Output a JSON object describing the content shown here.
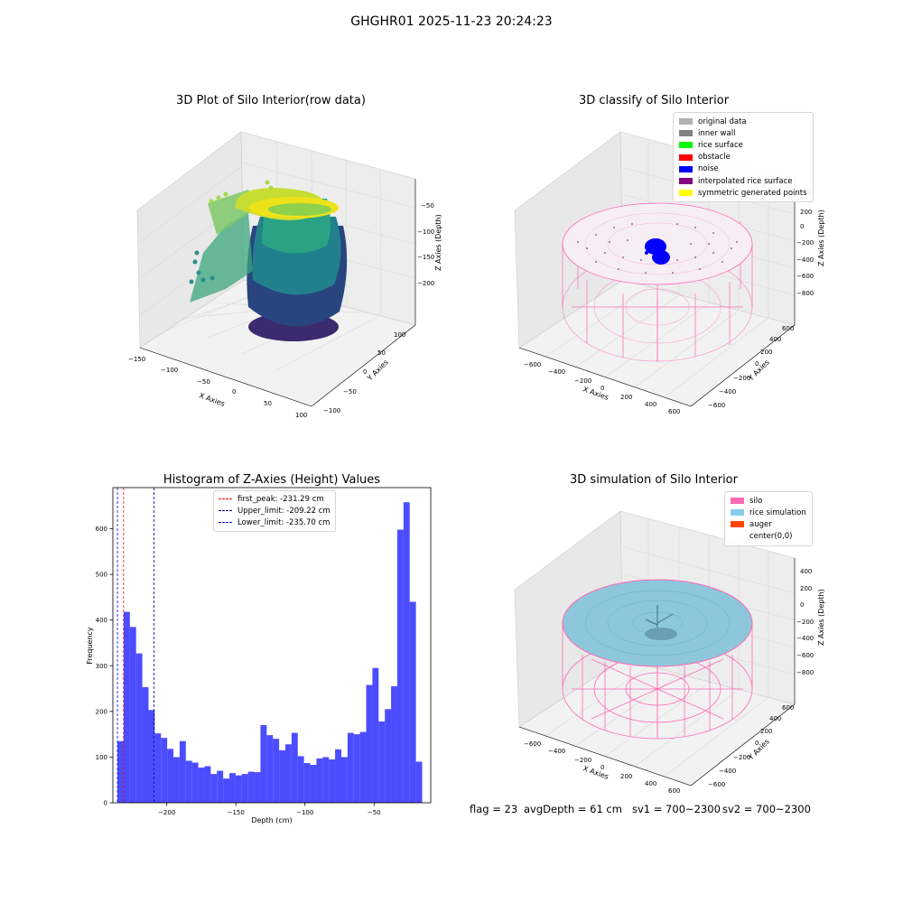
{
  "suptitle": "GHGHR01 2025-11-23 20:24:23",
  "panels": {
    "raw": {
      "title": "3D Plot of Silo Interior(row data)",
      "xlabel": "X Axies",
      "ylabel": "Y Axies",
      "zlabel": "Z Axies (Depth)",
      "xticks": [
        "−150",
        "−100",
        "−50",
        "0",
        "50",
        "100"
      ],
      "yticks": [
        "−100",
        "−50",
        "0",
        "50",
        "100"
      ],
      "zticks": [
        "−50",
        "−100",
        "−150",
        "−200"
      ]
    },
    "classify": {
      "title": "3D classify of Silo Interior",
      "xlabel": "X Axies",
      "ylabel": "Y Axies",
      "zlabel": "Z Axies (Depth)",
      "xticks": [
        "−600",
        "−400",
        "−200",
        "0",
        "200",
        "400",
        "600"
      ],
      "yticks": [
        "−600",
        "−400",
        "−200",
        "0",
        "200",
        "400",
        "600"
      ],
      "zticks": [
        "400",
        "200",
        "0",
        "−200",
        "−400",
        "−600",
        "−800"
      ],
      "legend": [
        {
          "label": "original data",
          "color": "#b0b0b0"
        },
        {
          "label": "inner wall",
          "color": "#808080"
        },
        {
          "label": "rice surface",
          "color": "#00ff00"
        },
        {
          "label": "obstacle",
          "color": "#ff0000"
        },
        {
          "label": "noise",
          "color": "#0000ff"
        },
        {
          "label": "interpolated rice surface",
          "color": "#800080"
        },
        {
          "label": "symmetric generated points",
          "color": "#ffff00"
        }
      ]
    },
    "simulation": {
      "title": "3D simulation of Silo Interior",
      "xlabel": "X Axies",
      "ylabel": "Y Axies",
      "zlabel": "Z Axies (Depth)",
      "xticks": [
        "−600",
        "−400",
        "−200",
        "0",
        "200",
        "400",
        "600"
      ],
      "yticks": [
        "−600",
        "−400",
        "−200",
        "0",
        "200",
        "400",
        "600"
      ],
      "zticks": [
        "400",
        "200",
        "0",
        "−200",
        "−400",
        "−600",
        "−800"
      ],
      "legend": [
        {
          "label": "silo",
          "color": "#ff69b4"
        },
        {
          "label": "rice simulation",
          "color": "#87ceeb"
        },
        {
          "label": "auger",
          "color": "#ff4500"
        },
        {
          "label": "center(0,0)",
          "color": "#ffffff"
        }
      ]
    }
  },
  "chart_data": [
    {
      "type": "bar",
      "title": "Histogram of Z-Axies (Height) Values",
      "xlabel": "Depth (cm)",
      "ylabel": "Frequency",
      "xlim": [
        -239,
        -9
      ],
      "ylim": [
        0,
        690
      ],
      "xticks": [
        -200,
        -150,
        -100,
        -50
      ],
      "xticklabels": [
        "−200",
        "−150",
        "−100",
        "−50"
      ],
      "yticks": [
        0,
        100,
        200,
        300,
        400,
        500,
        600
      ],
      "bin_start": -235.7,
      "bin_width": 4.5,
      "values": [
        135,
        418,
        385,
        327,
        253,
        203,
        152,
        142,
        118,
        100,
        135,
        92,
        88,
        77,
        80,
        63,
        70,
        53,
        65,
        60,
        63,
        68,
        67,
        170,
        148,
        140,
        115,
        128,
        153,
        102,
        87,
        83,
        97,
        100,
        95,
        117,
        100,
        153,
        150,
        155,
        258,
        295,
        178,
        205,
        255,
        598,
        658,
        440,
        90
      ],
      "color": "#0000ff",
      "vlines": [
        {
          "name": "first_peak",
          "label": "first_peak: -231.29 cm",
          "x": -231.29,
          "color": "#ff0000"
        },
        {
          "name": "upper-limit",
          "label": "Upper_limit: -209.22 cm",
          "x": -209.22,
          "color": "#00008b"
        },
        {
          "name": "lower-limit",
          "label": "Lower_limit: -235.70 cm",
          "x": -235.7,
          "color": "#0000ff"
        }
      ]
    }
  ],
  "status": {
    "flag": "flag = 23",
    "avg_depth": "avgDepth = 61 cm",
    "sv1": "sv1 = 700~2300",
    "sv2": "sv2 = 700~2300"
  }
}
